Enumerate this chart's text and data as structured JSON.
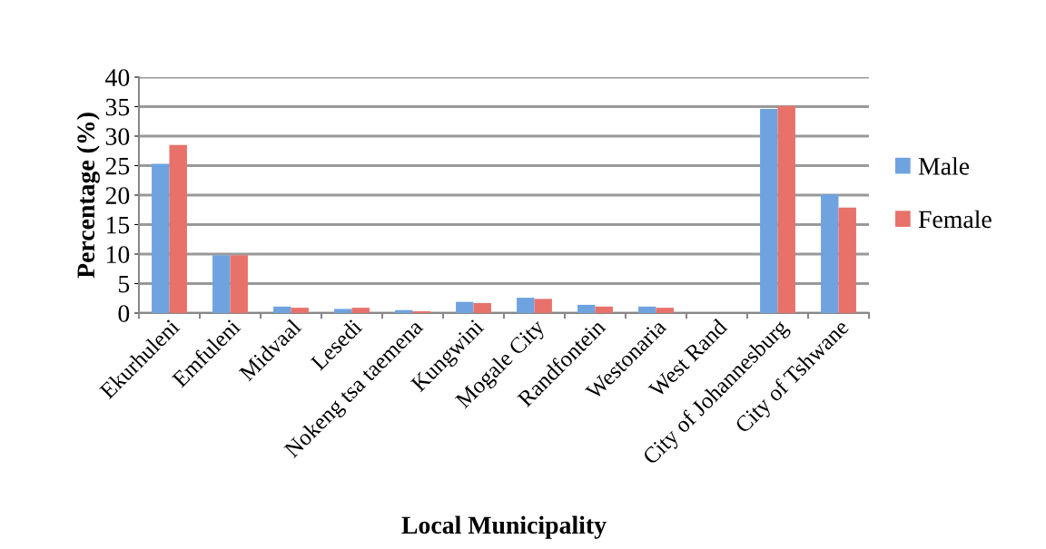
{
  "chart_data": {
    "type": "bar",
    "xlabel": "Local Municipality",
    "ylabel": "Percentage (%)",
    "categories": [
      "Ekurhuleni",
      "Emfuleni",
      "Midvaal",
      "Lesedi",
      "Nokeng tsa taemena",
      "Kungwini",
      "Mogale City",
      "Randfontein",
      "Westonaria",
      "West Rand",
      "City of Johannesburg",
      "City of Tshwane"
    ],
    "series": [
      {
        "name": "Male",
        "color": "#6fa3e0",
        "values": [
          25.3,
          9.8,
          1.1,
          0.7,
          0.5,
          1.9,
          2.6,
          1.4,
          1.1,
          0,
          34.6,
          20.1
        ]
      },
      {
        "name": "Female",
        "color": "#e8716a",
        "values": [
          28.5,
          9.8,
          0.9,
          0.9,
          0.3,
          1.7,
          2.4,
          1.1,
          0.9,
          0,
          35.1,
          17.9
        ]
      }
    ],
    "ylim": [
      0,
      40
    ],
    "yticks": [
      0,
      5,
      10,
      15,
      20,
      25,
      30,
      35,
      40
    ],
    "grid": "y",
    "legend": "right"
  }
}
